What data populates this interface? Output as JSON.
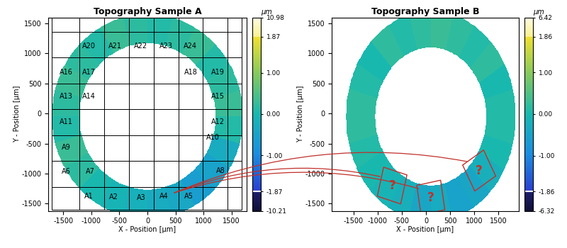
{
  "chart_data": [
    {
      "type": "heatmap",
      "title": "Topography Sample A",
      "x_label": "X - Position [µm]",
      "y_label": "Y - Position [µm]",
      "xlim": [
        -1770,
        1770
      ],
      "ylim": [
        -1620,
        1600
      ],
      "xticks": [
        -1500,
        -1000,
        -500,
        0,
        500,
        1000,
        1500
      ],
      "yticks": [
        -1500,
        -1000,
        -500,
        0,
        500,
        1000,
        1500
      ],
      "ring": {
        "center": [
          0,
          -50
        ],
        "inner_radius": 1220,
        "outer_radius": 1700,
        "sector_values": [
          0.3,
          0.2,
          0.1,
          0.3,
          0.2,
          0.1,
          0.2,
          0.3,
          0.1,
          0.2,
          0.3,
          0.2,
          0.1,
          0.3,
          0.2,
          0.0,
          -0.1,
          -0.2,
          -0.3,
          -0.4,
          -0.6,
          -0.5,
          -0.3,
          0.1
        ]
      },
      "colorbar": {
        "label": "µm",
        "range": [
          -10.21,
          10.98
        ],
        "ticks": [
          -10.21,
          -1.87,
          {
            "value": -1,
            "label": "-1.00"
          },
          {
            "value": 0,
            "label": "0.00"
          },
          {
            "value": 1,
            "label": "1.00"
          },
          1.87,
          10.98
        ]
      },
      "cell_grid": {
        "x": [
          -1710,
          -1210,
          -770,
          -330,
          110,
          550,
          990,
          1430,
          1680
        ],
        "y": [
          -1600,
          -1220,
          -790,
          -360,
          70,
          500,
          930,
          1360,
          1590
        ]
      },
      "regions": [
        {
          "label": "A1",
          "x": -1040,
          "y": -1380
        },
        {
          "label": "A2",
          "x": -600,
          "y": -1390
        },
        {
          "label": "A3",
          "x": -110,
          "y": -1400
        },
        {
          "label": "A4",
          "x": 300,
          "y": -1380
        },
        {
          "label": "A5",
          "x": 740,
          "y": -1380
        },
        {
          "label": "A6",
          "x": -1450,
          "y": -970
        },
        {
          "label": "A7",
          "x": -1020,
          "y": -970
        },
        {
          "label": "A8",
          "x": 1300,
          "y": -950
        },
        {
          "label": "A9",
          "x": -1450,
          "y": -570
        },
        {
          "label": "A10",
          "x": 1170,
          "y": -400
        },
        {
          "label": "A11",
          "x": -1450,
          "y": -140
        },
        {
          "label": "A12",
          "x": 1255,
          "y": -140
        },
        {
          "label": "A13",
          "x": -1450,
          "y": 280
        },
        {
          "label": "A14",
          "x": -1040,
          "y": 280
        },
        {
          "label": "A15",
          "x": 1255,
          "y": 280
        },
        {
          "label": "A16",
          "x": -1450,
          "y": 690
        },
        {
          "label": "A17",
          "x": -1040,
          "y": 690
        },
        {
          "label": "A18",
          "x": 770,
          "y": 690
        },
        {
          "label": "A19",
          "x": 1255,
          "y": 690
        },
        {
          "label": "A20",
          "x": -1040,
          "y": 1120
        },
        {
          "label": "A21",
          "x": -570,
          "y": 1120
        },
        {
          "label": "A22",
          "x": -120,
          "y": 1120
        },
        {
          "label": "A23",
          "x": 340,
          "y": 1120
        },
        {
          "label": "A24",
          "x": 770,
          "y": 1120
        }
      ],
      "link_from": "A4"
    },
    {
      "type": "heatmap",
      "title": "Topography Sample B",
      "x_label": "X - Position [µm]",
      "y_label": "Y - Position [µm]",
      "xlim": [
        -1950,
        1920
      ],
      "ylim": [
        -1620,
        1600
      ],
      "xticks": [
        -1500,
        -1000,
        -500,
        0,
        500,
        1000,
        1500
      ],
      "yticks": [
        -1500,
        -1000,
        -500,
        0,
        500,
        1000,
        1500
      ],
      "ring": {
        "center": [
          100,
          -50
        ],
        "inner_radius": 1150,
        "outer_radius": 1750,
        "sector_values": [
          0.1,
          0.0,
          0.2,
          0.1,
          0.2,
          0.3,
          0.2,
          0.1,
          0.2,
          0.0,
          0.1,
          0.2,
          0.2,
          0.1,
          0.0,
          -0.1,
          -0.2,
          -0.4,
          -0.3,
          -0.5,
          -0.4,
          -0.2,
          0.0,
          0.1
        ]
      },
      "colorbar": {
        "label": "µm",
        "range": [
          -6.32,
          6.42
        ],
        "ticks": [
          -6.32,
          -1.86,
          {
            "value": -1,
            "label": "-1.00"
          },
          {
            "value": 0,
            "label": "0.00"
          },
          {
            "value": 1,
            "label": "1.00"
          },
          1.86,
          6.42
        ]
      },
      "boxes": [
        {
          "label": "?",
          "x": -700,
          "y": -1200
        },
        {
          "label": "?",
          "x": 100,
          "y": -1400
        },
        {
          "label": "?",
          "x": 1100,
          "y": -950
        }
      ]
    }
  ]
}
